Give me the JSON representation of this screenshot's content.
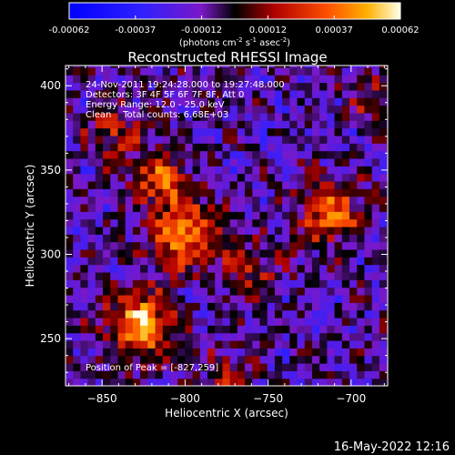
{
  "colorbar": {
    "tick_labels": [
      "-0.00062",
      "-0.00037",
      "-0.00012",
      "0.00012",
      "0.00037",
      "0.00062"
    ],
    "range": [
      -0.00062,
      0.00062
    ],
    "unit_parts": [
      "(photons cm",
      "-2",
      " s",
      "-1",
      " asec",
      "-2",
      ")"
    ]
  },
  "chart_data": {
    "type": "heatmap",
    "title": "Reconstructed RHESSI Image",
    "xlabel": "Heliocentric X (arcsec)",
    "ylabel": "Heliocentric Y (arcsec)",
    "xlim": [
      -872,
      -678
    ],
    "ylim": [
      222,
      412
    ],
    "x_ticks": [
      -850,
      -800,
      -750,
      -700
    ],
    "x_tick_labels": [
      "−850",
      "−800",
      "−750",
      "−700"
    ],
    "y_ticks": [
      250,
      300,
      350,
      400
    ],
    "y_tick_labels": [
      "250",
      "300",
      "350",
      "400"
    ],
    "colormap": "rhessi-fire",
    "hot_spots": [
      {
        "x": -827,
        "y": 259,
        "peak": 0.00062,
        "spread": 13
      },
      {
        "x": -800,
        "y": 312,
        "peak": 0.0005,
        "spread": 15
      },
      {
        "x": -815,
        "y": 345,
        "peak": 0.0004,
        "spread": 12
      },
      {
        "x": -712,
        "y": 325,
        "peak": 0.00045,
        "spread": 13
      },
      {
        "x": -842,
        "y": 372,
        "peak": 0.0003,
        "spread": 11
      },
      {
        "x": -760,
        "y": 290,
        "peak": 0.00025,
        "spread": 12
      },
      {
        "x": -775,
        "y": 230,
        "peak": 0.00025,
        "spread": 10
      },
      {
        "x": -690,
        "y": 395,
        "peak": 0.0002,
        "spread": 10
      }
    ],
    "annotations": [
      "24-Nov-2011 19:24:28.000 to 19:27:48.000",
      "Detectors: 3F 4F 5F 6F 7F 8F, Att 0",
      "Energy Range: 12.0 - 25.0 keV",
      "Clean    Total counts: 6.68E+03"
    ],
    "peak_label": "Position of Peak = [-827,259]"
  },
  "footer_timestamp": "16-May-2022 12:16"
}
